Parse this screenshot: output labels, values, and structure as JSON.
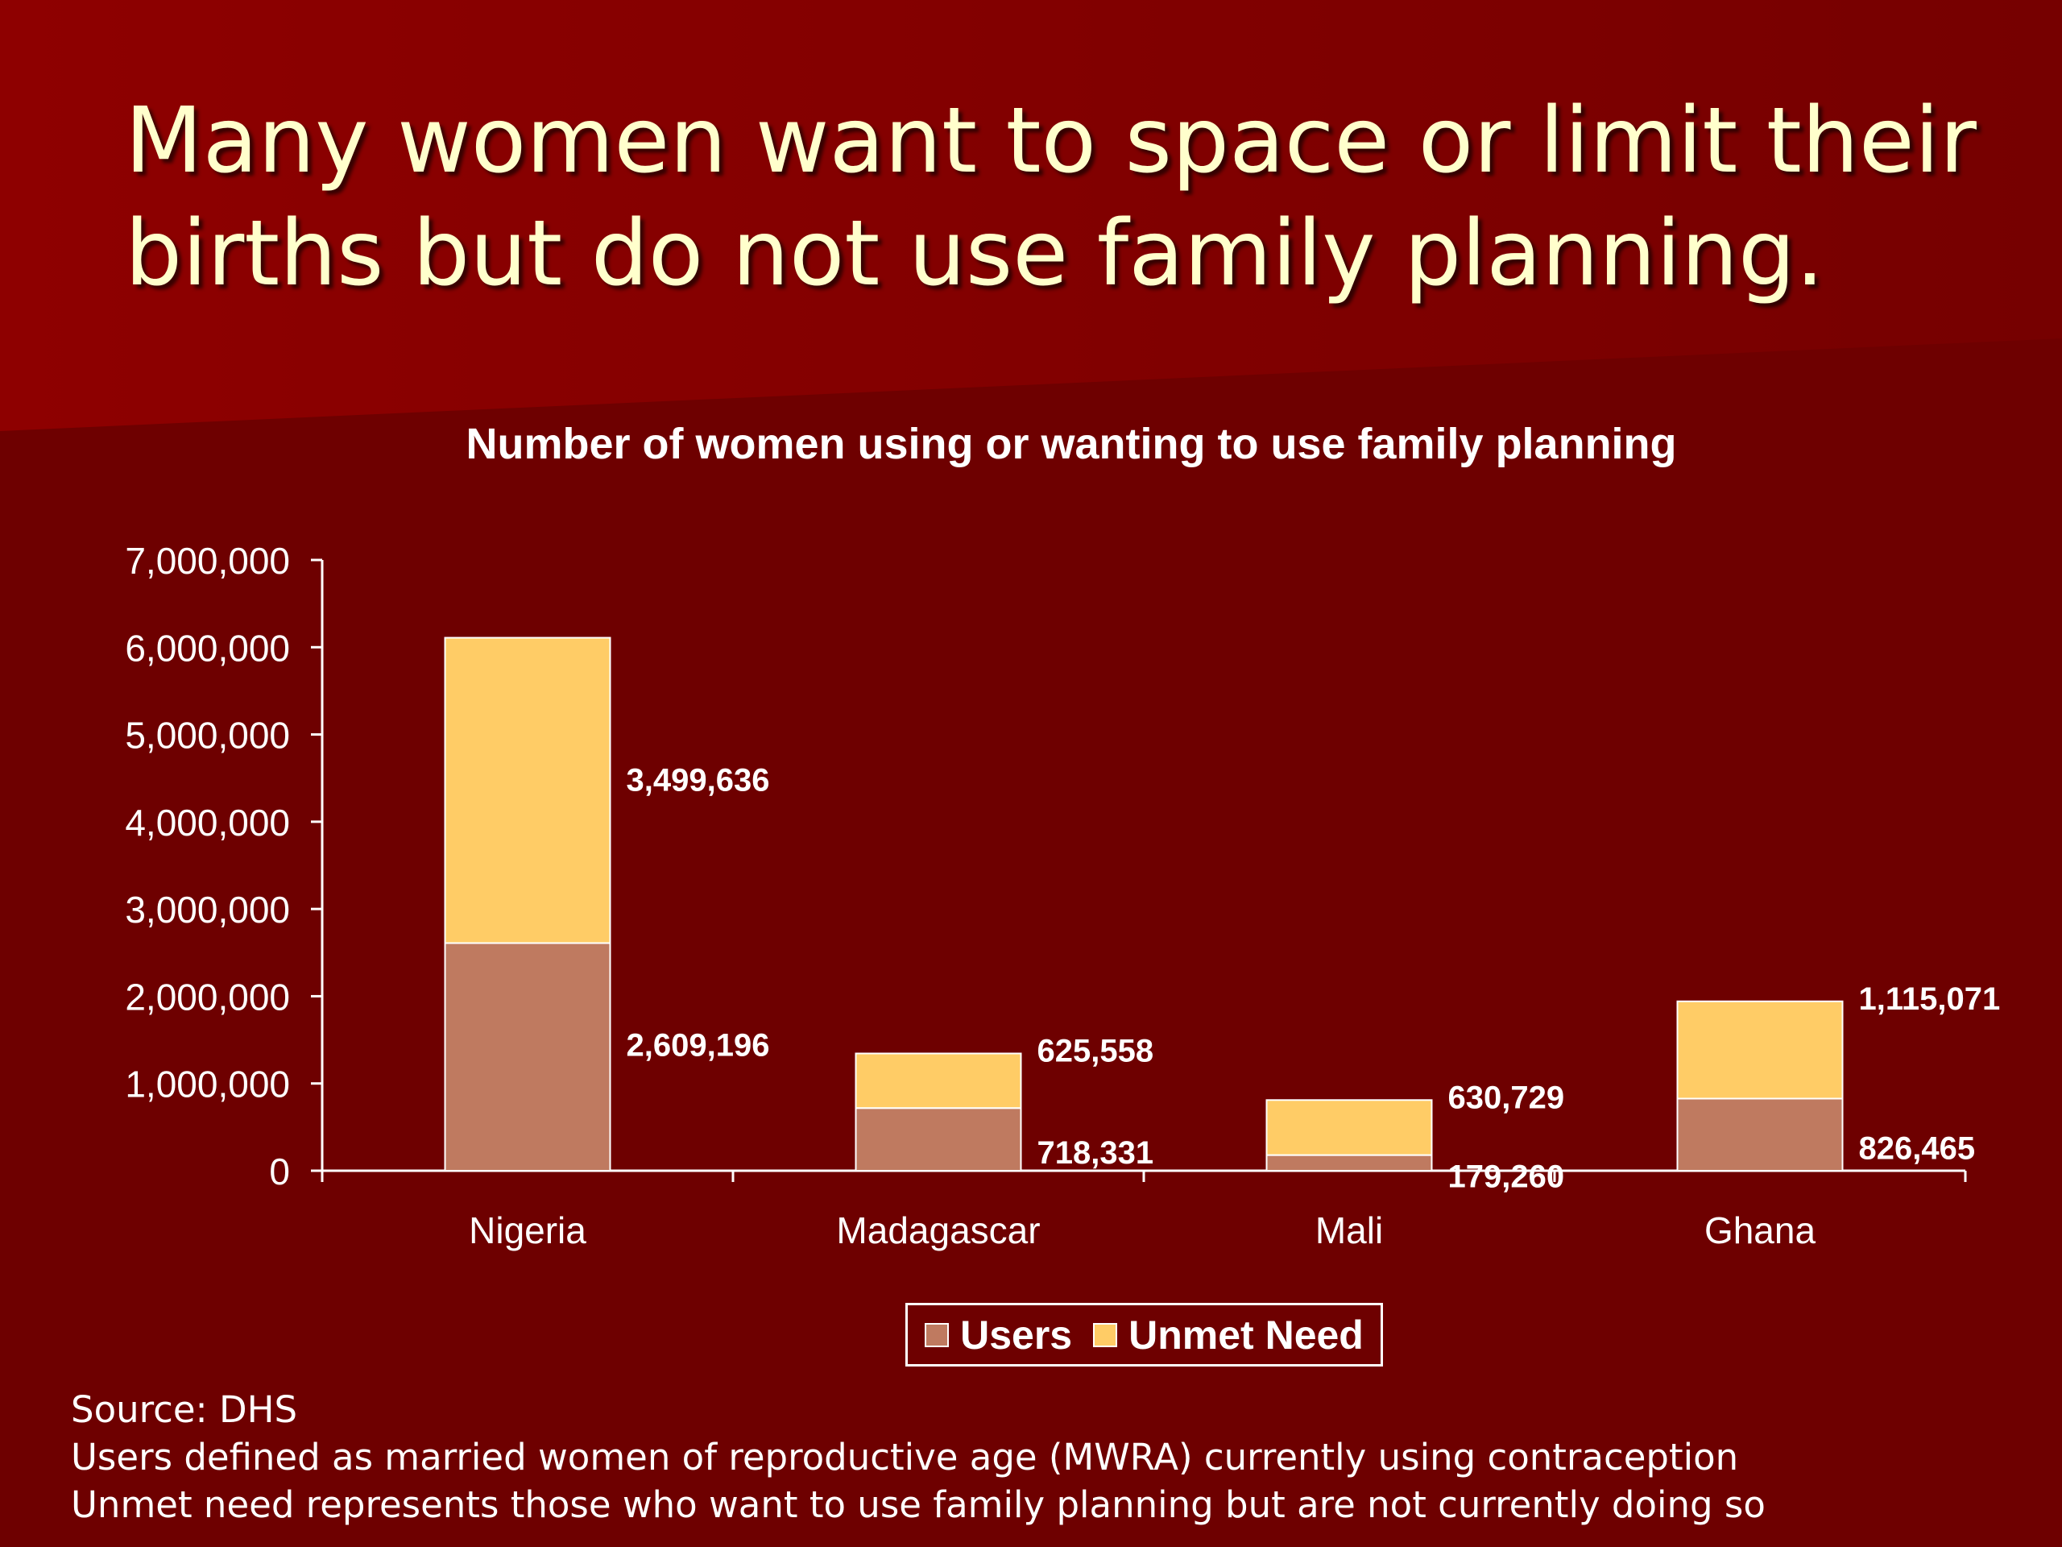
{
  "slide": {
    "title_lines": [
      "Many women want to space or limit their",
      "births but do not use family planning."
    ],
    "notes": [
      "Source: DHS",
      "Users defined as married women of reproductive age (MWRA) currently using contraception",
      "Unmet need represents those who want to use family planning but are not currently doing so"
    ]
  },
  "colors": {
    "background": "#6e0000",
    "background_band": "#8a0000",
    "users": "#bf7a60",
    "unmet_need": "#ffcc66",
    "title_text": "#ffffcc"
  },
  "chart_data": {
    "type": "bar",
    "stacked": true,
    "title": "Number of women using or wanting to use family planning",
    "categories": [
      "Nigeria",
      "Madagascar",
      "Mali",
      "Ghana"
    ],
    "series": [
      {
        "name": "Users",
        "values": [
          2609196,
          718331,
          179260,
          826465
        ],
        "labels": [
          "2,609,196",
          "718,331",
          "179,260",
          "826,465"
        ]
      },
      {
        "name": "Unmet Need",
        "values": [
          3499636,
          625558,
          630729,
          1115071
        ],
        "labels": [
          "3,499,636",
          "625,558",
          "630,729",
          "1,115,071"
        ]
      }
    ],
    "ylim": [
      0,
      7000000
    ],
    "yticks": [
      0,
      1000000,
      2000000,
      3000000,
      4000000,
      5000000,
      6000000,
      7000000
    ],
    "ytick_labels": [
      "0",
      "1,000,000",
      "2,000,000",
      "3,000,000",
      "4,000,000",
      "5,000,000",
      "6,000,000",
      "7,000,000"
    ],
    "legend_position": "bottom",
    "grid": false
  }
}
